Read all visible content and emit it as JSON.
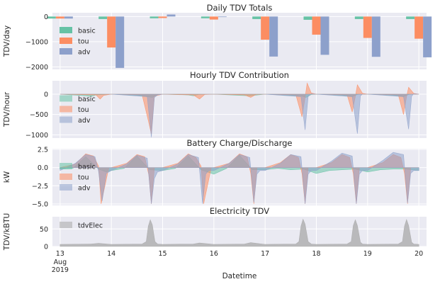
{
  "colors": {
    "basic": "#66c2a5",
    "tou": "#fc8d62",
    "adv": "#8da0cb",
    "tdvElec": "#a8a8a8",
    "panel": "#eaeaf2",
    "grid": "#ffffff"
  },
  "chart_data": [
    {
      "type": "bar",
      "title": "Daily TDV Totals",
      "ylabel": "TDV/day",
      "ylim": [
        -2100,
        150
      ],
      "yticks": [
        0,
        -1000,
        -2000
      ],
      "categories": [
        "Aug 13",
        "Aug 14",
        "Aug 15",
        "Aug 16",
        "Aug 17",
        "Aug 18",
        "Aug 19",
        "Aug 20"
      ],
      "series": [
        {
          "name": "basic",
          "values": [
            -80,
            -100,
            -70,
            -70,
            -100,
            -130,
            -100,
            -100
          ]
        },
        {
          "name": "tou",
          "values": [
            -80,
            -1230,
            -60,
            -120,
            -920,
            -720,
            -850,
            -880
          ]
        },
        {
          "name": "adv",
          "values": [
            -80,
            -2040,
            80,
            -20,
            -1590,
            -1520,
            -1600,
            -1620
          ]
        }
      ],
      "legend": "center-left"
    },
    {
      "type": "area",
      "title": "Hourly TDV Contribution",
      "ylabel": "TDV/hour",
      "ylim": [
        -1080,
        330
      ],
      "yticks": [
        0,
        -500,
        -1000
      ],
      "series": [
        {
          "name": "basic",
          "x": [
            13.0,
            13.5,
            13.6,
            13.7,
            14.0,
            14.5,
            14.7,
            14.8,
            14.9,
            15.0,
            15.5,
            15.6,
            15.7,
            16.0,
            16.5,
            16.7,
            17.0,
            17.5,
            17.7,
            17.8,
            17.9,
            18.0,
            18.5,
            18.7,
            18.8,
            18.9,
            19.0,
            19.5,
            19.7,
            19.8,
            19.9,
            20.0
          ],
          "values": [
            0,
            -40,
            -60,
            -20,
            0,
            -30,
            -60,
            -80,
            -10,
            0,
            -20,
            -40,
            -10,
            0,
            -30,
            -40,
            0,
            -30,
            -40,
            -80,
            -10,
            0,
            -30,
            -60,
            -10,
            0,
            0,
            -30,
            -60,
            -10,
            0,
            0
          ]
        },
        {
          "name": "tou",
          "x": [
            13.0,
            13.7,
            13.78,
            13.85,
            14.0,
            14.6,
            14.72,
            14.78,
            14.84,
            15.0,
            15.6,
            15.72,
            15.82,
            16.0,
            16.6,
            16.72,
            16.82,
            17.0,
            17.6,
            17.72,
            17.78,
            17.82,
            17.9,
            18.0,
            18.6,
            18.7,
            18.76,
            18.8,
            18.9,
            19.0,
            19.6,
            19.7,
            19.76,
            19.8,
            19.9,
            20.0
          ],
          "values": [
            0,
            -20,
            -120,
            -30,
            0,
            -20,
            -650,
            -980,
            -50,
            0,
            -20,
            -120,
            -10,
            0,
            -20,
            -80,
            -10,
            0,
            -20,
            -560,
            -80,
            270,
            30,
            0,
            -20,
            -440,
            -60,
            230,
            20,
            0,
            -20,
            -500,
            -60,
            170,
            20,
            0
          ]
        },
        {
          "name": "adv",
          "x": [
            13.0,
            14.0,
            14.7,
            14.78,
            14.84,
            14.9,
            15.0,
            16.0,
            17.0,
            17.7,
            17.78,
            17.84,
            17.9,
            18.0,
            18.7,
            18.8,
            18.86,
            18.9,
            19.0,
            19.7,
            19.8,
            19.86,
            19.9,
            20.0
          ],
          "values": [
            0,
            0,
            -60,
            -1060,
            -80,
            -20,
            0,
            0,
            0,
            -60,
            -880,
            -60,
            10,
            0,
            -60,
            -970,
            -40,
            0,
            0,
            -60,
            -860,
            -50,
            10,
            0
          ]
        }
      ],
      "legend": "center-left"
    },
    {
      "type": "area",
      "title": "Battery Charge/Discharge",
      "ylabel": "kW",
      "ylim": [
        -5.2,
        2.6
      ],
      "yticks": [
        2.5,
        0.0,
        -2.5,
        -5.0
      ],
      "yticklabels": [
        "2.5",
        "0.0",
        "−2.5",
        "−5.0"
      ],
      "series": [
        {
          "name": "basic",
          "x": [
            13.0,
            13.25,
            13.5,
            13.75,
            13.9,
            14.0,
            14.25,
            14.5,
            14.75,
            15.0,
            15.25,
            15.5,
            15.75,
            16.0,
            16.25,
            16.5,
            16.75,
            17.0,
            17.25,
            17.5,
            17.75,
            18.0,
            18.25,
            18.5,
            18.75,
            19.0,
            19.25,
            19.5,
            19.75,
            20.0
          ],
          "values": [
            -0.2,
            -0.1,
            1.5,
            -0.2,
            -0.6,
            -0.4,
            -0.1,
            1.6,
            -0.3,
            -0.4,
            -0.1,
            1.6,
            -0.3,
            -0.9,
            -0.1,
            1.7,
            -0.3,
            -0.3,
            -0.1,
            -0.3,
            -0.2,
            -0.8,
            -0.4,
            -0.3,
            -0.2,
            -0.6,
            -0.3,
            -0.2,
            -0.2,
            -0.4
          ]
        },
        {
          "name": "tou",
          "x": [
            13.0,
            13.3,
            13.5,
            13.65,
            13.75,
            13.8,
            13.95,
            14.0,
            14.3,
            14.5,
            14.65,
            14.73,
            14.78,
            14.84,
            15.0,
            15.3,
            15.5,
            15.65,
            15.75,
            15.8,
            15.95,
            16.0,
            16.3,
            16.5,
            16.65,
            16.72,
            16.78,
            16.84,
            17.0,
            17.3,
            17.5,
            17.65,
            17.72,
            17.78,
            17.84,
            18.0,
            18.3,
            18.5,
            18.65,
            18.72,
            18.78,
            18.84,
            19.0,
            19.3,
            19.5,
            19.65,
            19.72,
            19.78,
            19.84,
            20.0
          ],
          "values": [
            0,
            0.5,
            1.9,
            1.6,
            0.2,
            -5.0,
            0,
            0,
            0.6,
            1.8,
            1.5,
            -1.0,
            -5.0,
            0,
            0,
            0.6,
            1.9,
            1.4,
            0.2,
            -5.0,
            0,
            0,
            0.6,
            1.9,
            1.5,
            -0.8,
            -5.0,
            0,
            0,
            0.7,
            1.8,
            1.4,
            -0.8,
            -5.0,
            0,
            0,
            0.7,
            1.8,
            1.4,
            -0.8,
            -5.0,
            0,
            0,
            0.7,
            1.8,
            1.4,
            -0.8,
            -5.0,
            0,
            0
          ]
        },
        {
          "name": "adv",
          "x": [
            13.0,
            13.3,
            13.5,
            13.68,
            13.75,
            13.82,
            13.9,
            14.0,
            14.3,
            14.5,
            14.7,
            14.78,
            14.84,
            14.9,
            15.0,
            15.3,
            15.5,
            15.7,
            15.78,
            15.84,
            15.9,
            16.0,
            16.3,
            16.5,
            16.7,
            16.78,
            16.84,
            16.9,
            17.0,
            17.3,
            17.5,
            17.7,
            17.78,
            17.84,
            17.9,
            18.0,
            18.3,
            18.5,
            18.7,
            18.78,
            18.84,
            18.9,
            19.0,
            19.3,
            19.5,
            19.7,
            19.78,
            19.84,
            19.9,
            20.0
          ],
          "values": [
            -0.4,
            0.6,
            1.8,
            1.5,
            -0.5,
            -4.6,
            -0.8,
            -0.4,
            0.5,
            1.7,
            1.3,
            -5.0,
            -1.5,
            -0.6,
            -0.4,
            0.5,
            1.8,
            1.4,
            -5.0,
            -0.9,
            -0.4,
            -0.4,
            0.6,
            1.8,
            1.4,
            -4.8,
            -0.9,
            -0.4,
            -0.4,
            0.6,
            1.8,
            1.5,
            -5.0,
            -0.9,
            -0.4,
            -0.4,
            0.9,
            2.0,
            1.6,
            -5.0,
            -0.9,
            -0.4,
            -0.4,
            1.0,
            2.1,
            1.8,
            -4.9,
            -0.8,
            -0.4,
            -0.4
          ]
        }
      ],
      "legend": "center-left"
    },
    {
      "type": "area",
      "title": "Electricity TDV",
      "ylabel": "TDV/kBTU",
      "xlabel": "Datetime",
      "ylim": [
        0,
        85
      ],
      "yticks": [
        0,
        50
      ],
      "xticks": [
        "13",
        "14",
        "15",
        "16",
        "17",
        "18",
        "19",
        "20"
      ],
      "xtick_sublabel": [
        "Aug",
        "2019"
      ],
      "series": [
        {
          "name": "tdvElec",
          "x": [
            13.0,
            13.6,
            13.75,
            14.0,
            14.6,
            14.68,
            14.72,
            14.76,
            14.8,
            14.85,
            14.9,
            15.0,
            15.6,
            15.72,
            16.0,
            16.6,
            16.72,
            17.0,
            17.6,
            17.66,
            17.7,
            17.74,
            17.78,
            17.84,
            17.9,
            18.0,
            18.6,
            18.68,
            18.72,
            18.76,
            18.8,
            18.86,
            18.9,
            19.0,
            19.6,
            19.68,
            19.72,
            19.76,
            19.8,
            19.86,
            19.9,
            20.0
          ],
          "values": [
            6,
            7,
            9,
            6,
            7,
            14,
            58,
            76,
            62,
            14,
            7,
            6,
            7,
            10,
            6,
            7,
            11,
            6,
            7,
            14,
            58,
            78,
            64,
            14,
            7,
            6,
            7,
            14,
            60,
            76,
            60,
            12,
            7,
            6,
            7,
            14,
            58,
            77,
            60,
            12,
            7,
            6
          ]
        }
      ],
      "legend": "upper-left"
    }
  ]
}
